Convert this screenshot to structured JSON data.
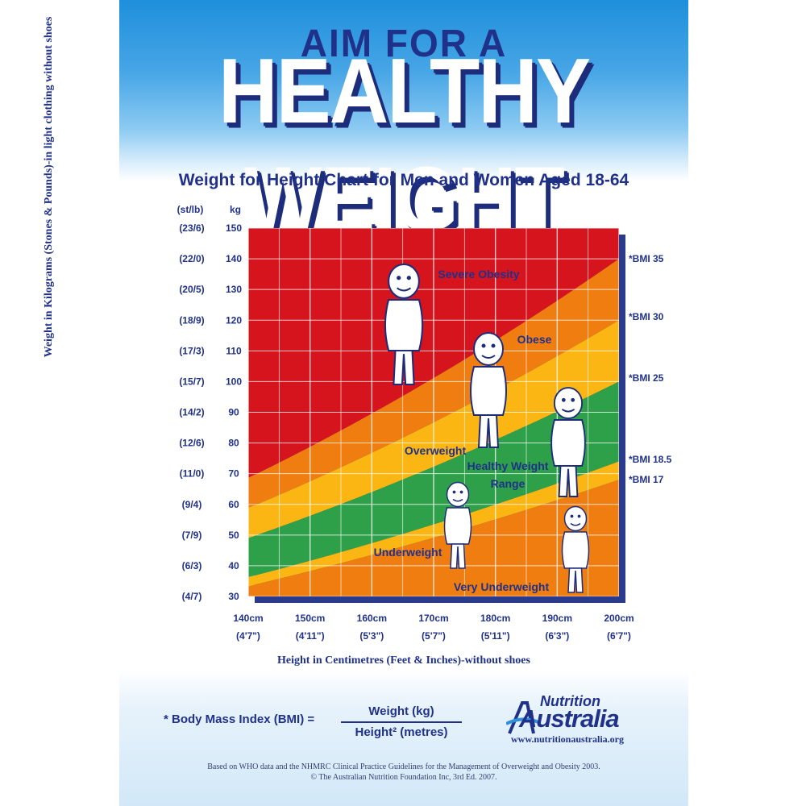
{
  "poster": {
    "heading_small": "AIM FOR A",
    "heading_large": "HEALTHY WEIGHT",
    "subtitle": "Weight for Height Chart for Men and Women Aged 18-64",
    "bmi_definition": {
      "label": "* Body Mass Index (BMI) =",
      "numerator": "Weight (kg)",
      "denominator": "Height² (metres)"
    },
    "logo": {
      "line1": "Nutrition",
      "line2": "Australia",
      "url": "www.nutritionaustralia.org"
    },
    "footnote": [
      "Based on WHO data and the NHMRC Clinical Practice Guidelines for the Management of Overweight and Obesity 2003.",
      "© The Australian Nutrition Foundation Inc, 3rd Ed. 2007."
    ]
  },
  "chart_data": {
    "type": "area",
    "title": "Weight for Height Chart for Men and Women Aged 18-64",
    "xlabel": "Height in Centimetres (Feet & Inches)-without shoes",
    "ylabel": "Weight in Kilograms (Stones & Pounds)-in light clothing without shoes",
    "y_unit_headers": {
      "stones": "(st/lb)",
      "kg": "kg"
    },
    "xlim": [
      140,
      200
    ],
    "ylim": [
      30,
      150
    ],
    "grid": true,
    "x_ticks": [
      {
        "cm": "140cm",
        "ft": "(4'7\")"
      },
      {
        "cm": "150cm",
        "ft": "(4'11\")"
      },
      {
        "cm": "160cm",
        "ft": "(5'3\")"
      },
      {
        "cm": "170cm",
        "ft": "(5'7\")"
      },
      {
        "cm": "180cm",
        "ft": "(5'11\")"
      },
      {
        "cm": "190cm",
        "ft": "(6'3\")"
      },
      {
        "cm": "200cm",
        "ft": "(6'7\")"
      }
    ],
    "y_ticks": [
      {
        "kg": "150",
        "st": "(23/6)"
      },
      {
        "kg": "140",
        "st": "(22/0)"
      },
      {
        "kg": "130",
        "st": "(20/5)"
      },
      {
        "kg": "120",
        "st": "(18/9)"
      },
      {
        "kg": "110",
        "st": "(17/3)"
      },
      {
        "kg": "100",
        "st": "(15/7)"
      },
      {
        "kg": "90",
        "st": "(14/2)"
      },
      {
        "kg": "80",
        "st": "(12/6)"
      },
      {
        "kg": "70",
        "st": "(11/0)"
      },
      {
        "kg": "60",
        "st": "(9/4)"
      },
      {
        "kg": "50",
        "st": "(7/9)"
      },
      {
        "kg": "40",
        "st": "(6/3)"
      },
      {
        "kg": "30",
        "st": "(4/7)"
      }
    ],
    "bmi_lines": [
      {
        "label": "*BMI 35",
        "bmi": 35
      },
      {
        "label": "*BMI 30",
        "bmi": 30
      },
      {
        "label": "*BMI 25",
        "bmi": 25
      },
      {
        "label": "*BMI 18.5",
        "bmi": 18.5
      },
      {
        "label": "*BMI 17",
        "bmi": 17
      }
    ],
    "zones": [
      {
        "label": "Severe Obesity",
        "color": "#d6141e"
      },
      {
        "label": "Obese",
        "color": "#f07d10"
      },
      {
        "label": "Overweight",
        "color": "#fbb614"
      },
      {
        "label": "Healthy Weight Range",
        "color": "#2fa04a"
      },
      {
        "label": "Underweight",
        "color": "#fbb614"
      },
      {
        "label": "Very Underweight",
        "color": "#f07d10"
      }
    ],
    "colors": {
      "text": "#20318a",
      "grid": "#ffffff",
      "shadow": "#2a3a8c"
    }
  }
}
